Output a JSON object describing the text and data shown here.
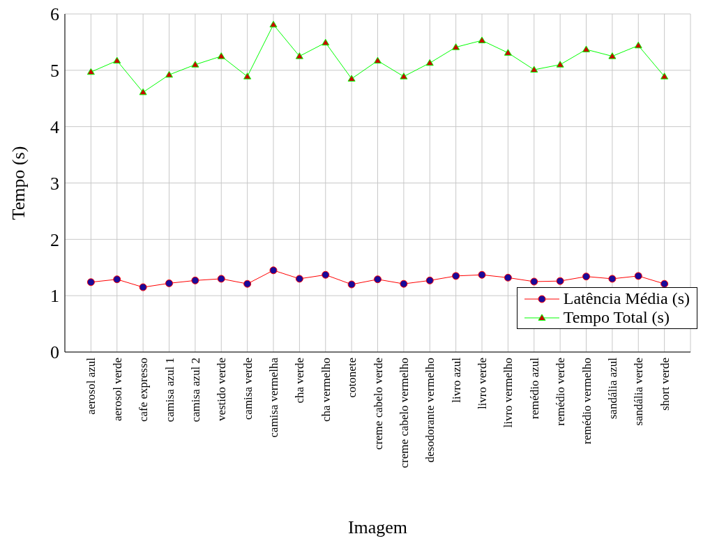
{
  "chart_data": {
    "type": "line",
    "xlabel": "Imagem",
    "ylabel": "Tempo (s)",
    "categories": [
      "aerosol azul",
      "aerosol verde",
      "cafe expresso",
      "camisa azul 1",
      "camisa azul 2",
      "vestido verde",
      "camisa verde",
      "camisa vermelha",
      "cha verde",
      "cha vermelho",
      "cotonete",
      "creme cabelo verde",
      "creme cabelo vermelho",
      "desodorante vermelho",
      "livro azul",
      "livro verde",
      "livro vermelho",
      "remédio azul",
      "remédio verde",
      "remédio vermelho",
      "sandália azul",
      "sandália verde",
      "short verde"
    ],
    "series": [
      {
        "name": "Latência Média (s)",
        "color": "#ff0000",
        "marker": "circle",
        "values": [
          1.24,
          1.29,
          1.15,
          1.22,
          1.27,
          1.3,
          1.21,
          1.45,
          1.3,
          1.37,
          1.2,
          1.29,
          1.21,
          1.27,
          1.35,
          1.37,
          1.32,
          1.25,
          1.26,
          1.34,
          1.3,
          1.35,
          1.21
        ]
      },
      {
        "name": "Tempo Total (s)",
        "color": "#00ff00",
        "marker": "triangle",
        "values": [
          4.97,
          5.17,
          4.61,
          4.92,
          5.1,
          5.25,
          4.89,
          5.81,
          5.25,
          5.49,
          4.85,
          5.17,
          4.89,
          5.13,
          5.41,
          5.53,
          5.31,
          5.01,
          5.1,
          5.37,
          5.25,
          5.44,
          4.89
        ]
      }
    ],
    "ylim": [
      0,
      6
    ],
    "yticks": [
      0,
      1,
      2,
      3,
      4,
      5,
      6
    ],
    "grid": true,
    "legend": "bottom right",
    "line_style": "solid"
  }
}
